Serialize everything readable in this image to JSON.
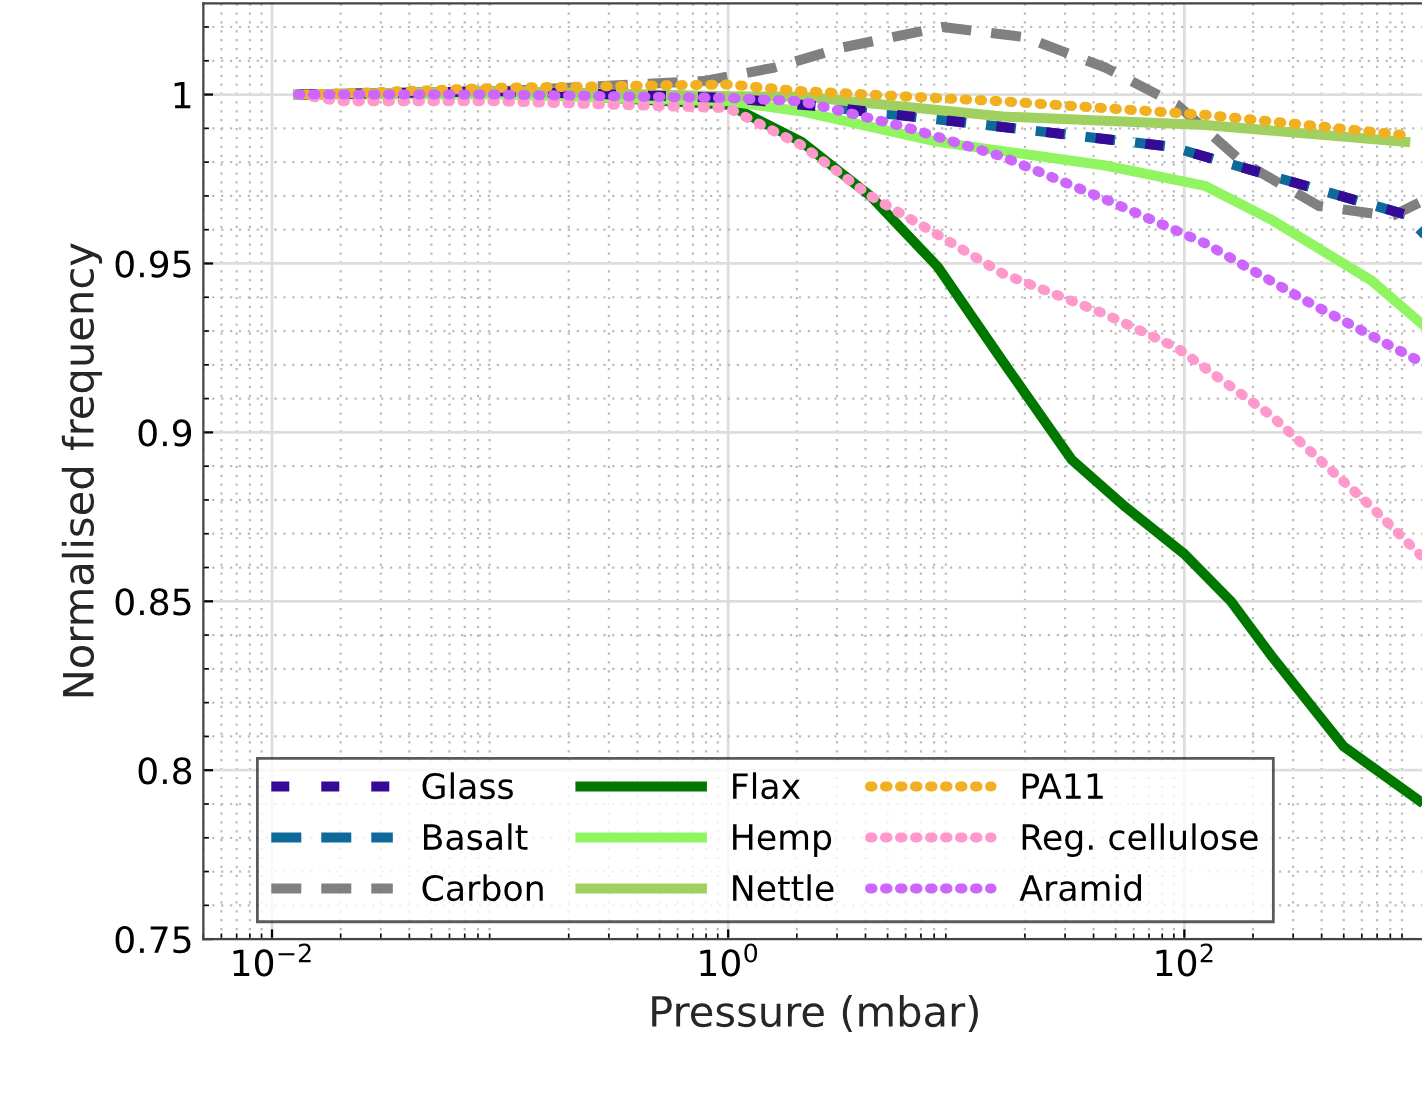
{
  "chart_data": {
    "type": "line",
    "xlabel": "Pressure (mbar)",
    "ylabel": "Normalised frequency",
    "log": "x",
    "xlim": [
      0.005,
      1150
    ],
    "ylim": [
      0.75,
      1.027
    ],
    "xticks": [
      {
        "value": 0.01,
        "label": "10$^{−2}$"
      },
      {
        "value": 1,
        "label": "10$^{0}$"
      },
      {
        "value": 100,
        "label": "10$^{2}$"
      }
    ],
    "yticks": [
      0.75,
      0.8,
      0.85,
      0.9,
      0.95,
      1
    ],
    "grid": true,
    "legend": "bottom left",
    "marker": "none",
    "series": [
      {
        "name": "Glass",
        "color": "#350a96",
        "line_style": "dashed",
        "x": [
          0.013,
          0.1,
          1,
          3,
          10,
          32,
          87,
          340,
          930,
          1150
        ],
        "values": [
          1,
          1.001,
          0.999,
          0.996,
          0.992,
          0.988,
          0.9846,
          0.973,
          0.9645,
          0.962
        ]
      },
      {
        "name": "Basalt",
        "color": "#0e6a9a",
        "line_style": "dashed",
        "x": [
          3,
          10,
          32,
          87,
          340,
          930,
          1150
        ],
        "values": [
          0.996,
          0.992,
          0.988,
          0.9846,
          0.973,
          0.9645,
          0.958
        ]
      },
      {
        "name": "Carbon",
        "color": "#808080",
        "line_style": "dashed",
        "x": [
          0.013,
          0.1,
          0.78,
          1.6,
          3.2,
          8.7,
          20,
          45,
          93,
          180,
          390,
          810,
          1150
        ],
        "values": [
          1,
          1.001,
          1.004,
          1.008,
          1.014,
          1.02,
          1.017,
          1.008,
          0.997,
          0.98,
          0.967,
          0.964,
          0.969
        ]
      },
      {
        "name": "Flax",
        "color": "#007800",
        "line_style": "solid",
        "x": [
          0.013,
          0.1,
          1,
          2.1,
          4.2,
          8.3,
          16,
          32,
          55,
          100,
          160,
          240,
          500,
          1070
        ],
        "values": [
          1,
          1.001,
          0.997,
          0.986,
          0.97,
          0.949,
          0.921,
          0.892,
          0.878,
          0.864,
          0.85,
          0.834,
          0.807,
          0.791
        ]
      },
      {
        "name": "Hemp",
        "color": "#90f560",
        "line_style": "solid",
        "x": [
          0.013,
          0.1,
          1,
          2.1,
          8.3,
          45,
          123,
          240,
          660,
          1150
        ],
        "values": [
          1,
          1.0,
          0.998,
          0.995,
          0.986,
          0.979,
          0.973,
          0.963,
          0.945,
          0.931
        ]
      },
      {
        "name": "Nettle",
        "color": "#a0d060",
        "line_style": "solid",
        "x": [
          0.013,
          0.1,
          1,
          2.1,
          16,
          123,
          930
        ],
        "values": [
          1,
          1.001,
          0.9995,
          0.9994,
          0.9935,
          0.991,
          0.986
        ]
      },
      {
        "name": "PA11",
        "color": "#f0b020",
        "line_style": "dotted",
        "x": [
          0.014,
          0.1,
          1,
          2.1,
          16,
          123,
          930
        ],
        "values": [
          1,
          1.002,
          1.003,
          1.001,
          0.998,
          0.994,
          0.988
        ]
      },
      {
        "name": "Reg. cellulose",
        "color": "#ff99cc",
        "line_style": "dotted",
        "x": [
          0.013,
          0.02,
          0.1,
          1,
          2.1,
          4.2,
          8.3,
          16,
          45,
          93,
          240,
          660,
          1150
        ],
        "values": [
          1,
          0.998,
          0.998,
          0.996,
          0.985,
          0.97,
          0.9585,
          0.947,
          0.935,
          0.925,
          0.905,
          0.878,
          0.862
        ]
      },
      {
        "name": "Aramid",
        "color": "#cc66ff",
        "line_style": "dotted",
        "x": [
          0.013,
          0.1,
          1,
          2.1,
          5.9,
          16,
          45,
          123,
          340,
          1150
        ],
        "values": [
          1,
          1.0,
          0.999,
          0.998,
          0.9905,
          0.9816,
          0.969,
          0.956,
          0.939,
          0.92
        ]
      }
    ]
  }
}
